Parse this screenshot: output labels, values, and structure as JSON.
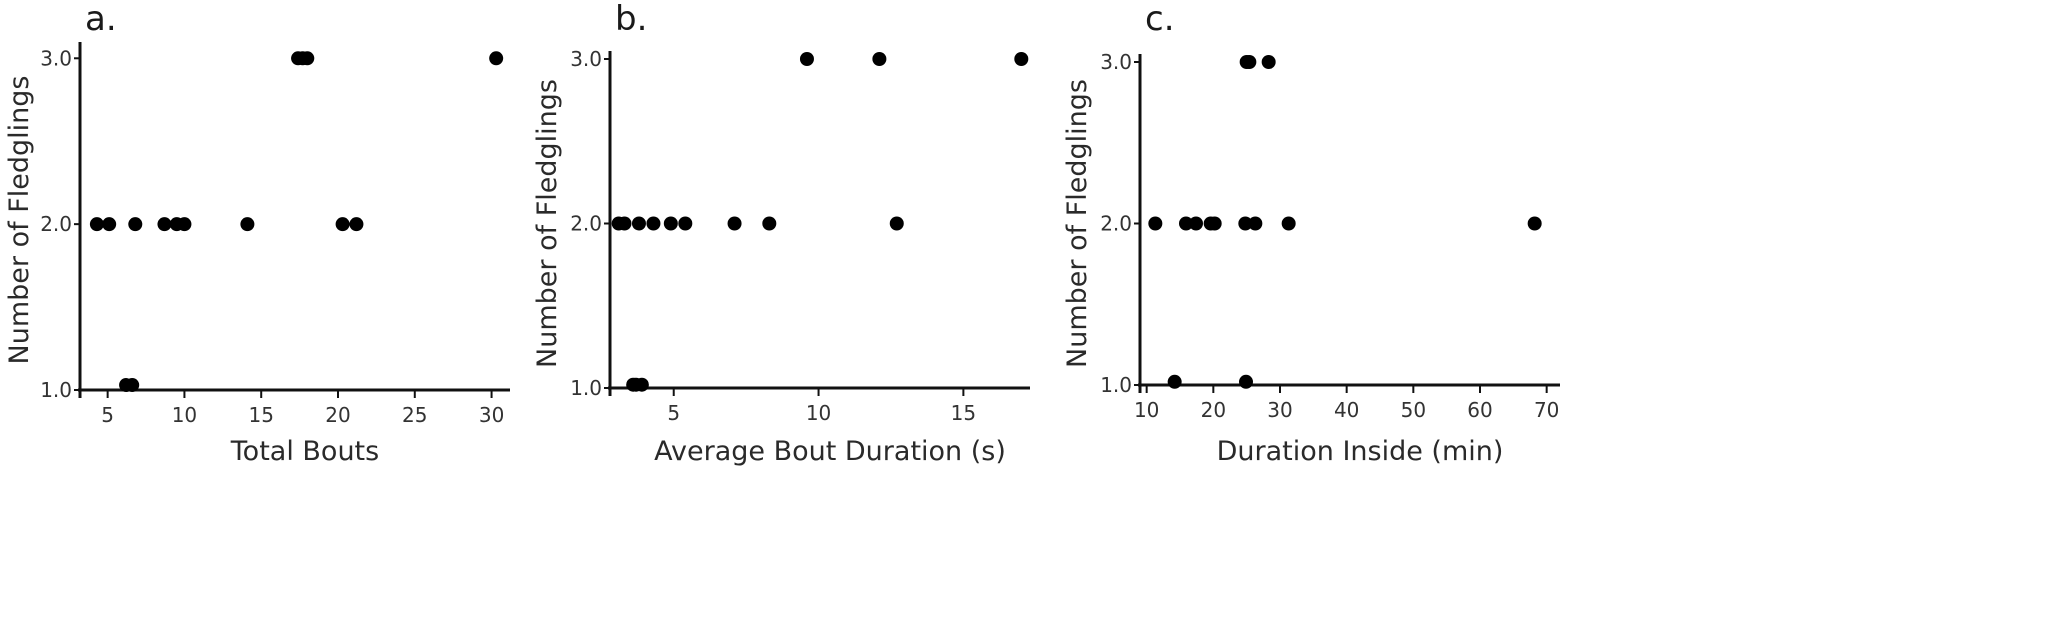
{
  "chart_data": [
    {
      "type": "scatter",
      "panel_label": "a.",
      "xlabel": "Total Bouts",
      "ylabel": "Number of Fledglings",
      "xticks": [
        5,
        10,
        15,
        20,
        25,
        30
      ],
      "yticks": [
        1.0,
        2.0,
        3.0
      ],
      "ytick_labels": [
        "1.0",
        "2.0",
        "3.0"
      ],
      "xlim": [
        3.2,
        31.2
      ],
      "ylim": [
        1.0,
        3.05
      ],
      "grid": false,
      "points": [
        {
          "x": 4.3,
          "y": 2.0
        },
        {
          "x": 5.1,
          "y": 2.0
        },
        {
          "x": 6.2,
          "y": 1.03
        },
        {
          "x": 6.6,
          "y": 1.03
        },
        {
          "x": 6.8,
          "y": 2.0
        },
        {
          "x": 8.7,
          "y": 2.0
        },
        {
          "x": 9.5,
          "y": 2.0
        },
        {
          "x": 10.0,
          "y": 2.0
        },
        {
          "x": 14.1,
          "y": 2.0
        },
        {
          "x": 17.4,
          "y": 3.0
        },
        {
          "x": 17.7,
          "y": 3.0
        },
        {
          "x": 18.0,
          "y": 3.0
        },
        {
          "x": 20.3,
          "y": 2.0
        },
        {
          "x": 21.2,
          "y": 2.0
        },
        {
          "x": 30.3,
          "y": 3.0
        }
      ]
    },
    {
      "type": "scatter",
      "panel_label": "b.",
      "xlabel": "Average Bout Duration (s)",
      "ylabel": "Number of Fledglings",
      "xticks": [
        5,
        10,
        15
      ],
      "yticks": [
        1.0,
        2.0,
        3.0
      ],
      "ytick_labels": [
        "1.0",
        "2.0",
        "3.0"
      ],
      "xlim": [
        2.8,
        17.3
      ],
      "ylim": [
        1.0,
        3.0
      ],
      "grid": false,
      "points": [
        {
          "x": 3.1,
          "y": 2.0
        },
        {
          "x": 3.3,
          "y": 2.0
        },
        {
          "x": 3.6,
          "y": 1.02
        },
        {
          "x": 3.7,
          "y": 1.02
        },
        {
          "x": 3.8,
          "y": 2.0
        },
        {
          "x": 3.9,
          "y": 1.02
        },
        {
          "x": 4.3,
          "y": 2.0
        },
        {
          "x": 4.9,
          "y": 2.0
        },
        {
          "x": 5.4,
          "y": 2.0
        },
        {
          "x": 7.1,
          "y": 2.0
        },
        {
          "x": 8.3,
          "y": 2.0
        },
        {
          "x": 9.6,
          "y": 3.0
        },
        {
          "x": 12.1,
          "y": 3.0
        },
        {
          "x": 12.7,
          "y": 2.0
        },
        {
          "x": 17.0,
          "y": 3.0
        }
      ]
    },
    {
      "type": "scatter",
      "panel_label": "c.",
      "xlabel": "Duration Inside (min)",
      "ylabel": "Number of Fledglings",
      "xticks": [
        10,
        20,
        30,
        40,
        50,
        60,
        70
      ],
      "yticks": [
        1.0,
        2.0,
        3.0
      ],
      "ytick_labels": [
        "1.0",
        "2.0",
        "3.0"
      ],
      "xlim": [
        9.0,
        72.0
      ],
      "ylim": [
        1.0,
        3.0
      ],
      "grid": false,
      "points": [
        {
          "x": 11.3,
          "y": 2.0
        },
        {
          "x": 14.2,
          "y": 1.02
        },
        {
          "x": 15.9,
          "y": 2.0
        },
        {
          "x": 17.4,
          "y": 2.0
        },
        {
          "x": 19.6,
          "y": 2.0
        },
        {
          "x": 20.2,
          "y": 2.0
        },
        {
          "x": 24.8,
          "y": 2.0
        },
        {
          "x": 24.9,
          "y": 1.02
        },
        {
          "x": 25.0,
          "y": 3.0
        },
        {
          "x": 25.4,
          "y": 3.0
        },
        {
          "x": 26.3,
          "y": 2.0
        },
        {
          "x": 28.3,
          "y": 3.0
        },
        {
          "x": 31.3,
          "y": 2.0
        },
        {
          "x": 68.2,
          "y": 2.0
        }
      ]
    }
  ]
}
